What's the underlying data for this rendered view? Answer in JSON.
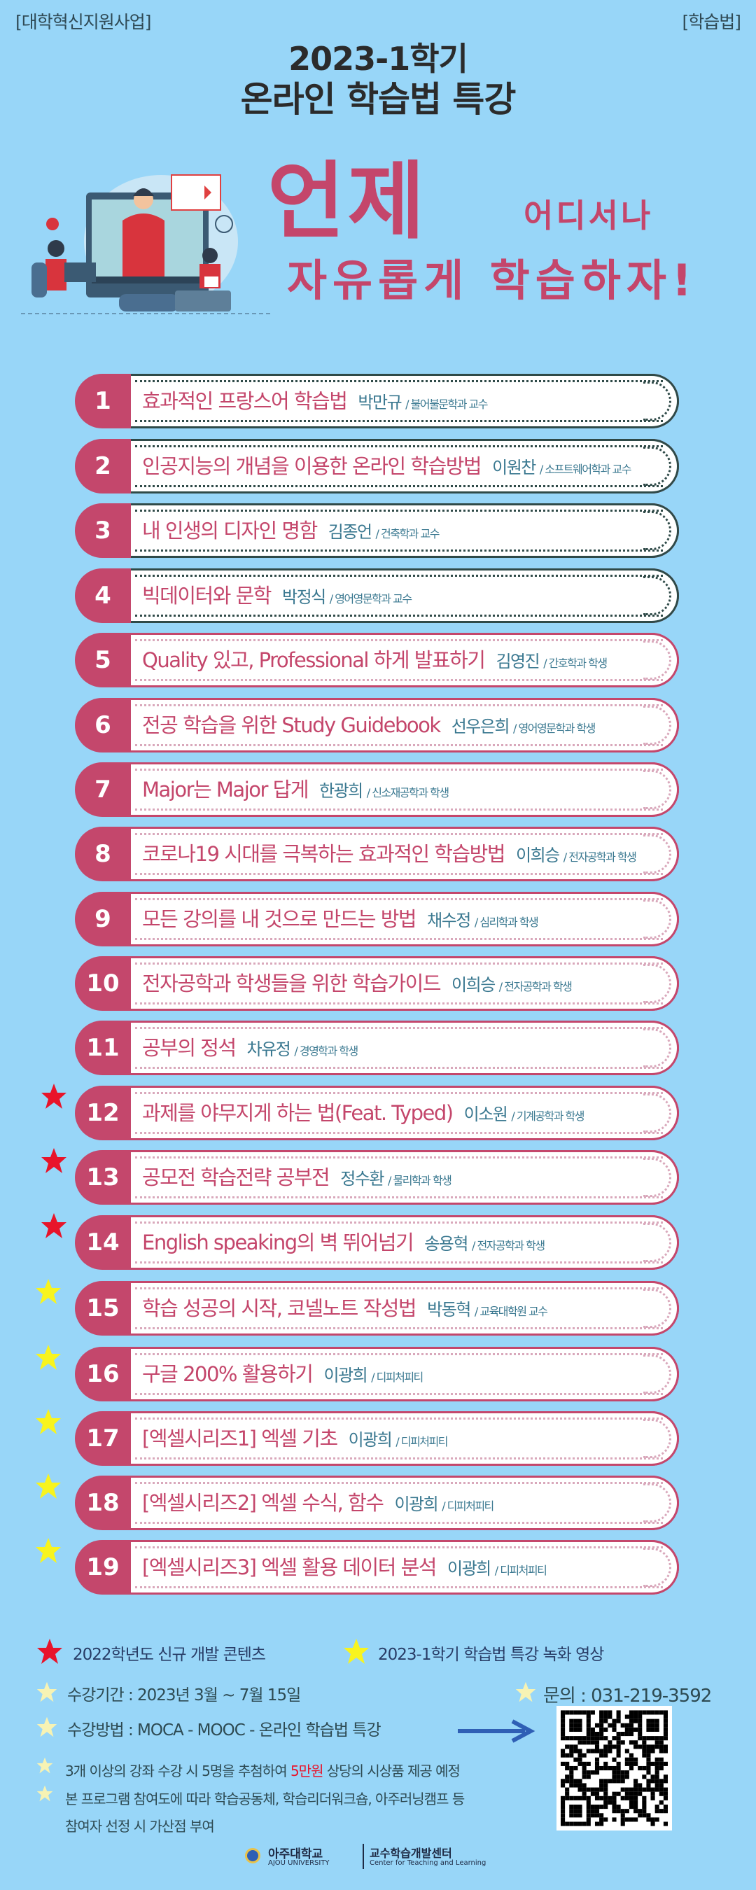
{
  "header": {
    "left_tag": "[대학혁신지원사업]",
    "right_tag": "[학습법]",
    "title_line1": "2023-1학기",
    "title_line2": "온라인 학습법 특강"
  },
  "slogan": {
    "word1": "언제",
    "word2": "어디서나",
    "line2": "자유롭게 학습하자!"
  },
  "colors": {
    "background": "#98d6f8",
    "accent_pink": "#c4476c",
    "name_teal": "#3a7890",
    "red_star": "#e8142a",
    "yellow_star": "#f8f41e"
  },
  "lectures": [
    {
      "num": "1",
      "title": "효과적인 프랑스어 학습법",
      "name": "박만규",
      "dept": "/ 불어불문학과 교수",
      "star": ""
    },
    {
      "num": "2",
      "title": "인공지능의 개념을 이용한 온라인 학습방법",
      "name": "이원찬",
      "dept": "/ 소프트웨어학과 교수",
      "star": ""
    },
    {
      "num": "3",
      "title": "내 인생의 디자인 명함",
      "name": "김종언",
      "dept": "/ 건축학과 교수",
      "star": ""
    },
    {
      "num": "4",
      "title": "빅데이터와 문학",
      "name": "박정식",
      "dept": "/ 영어영문학과 교수",
      "star": ""
    },
    {
      "num": "5",
      "title": "Quality 있고, Professional 하게 발표하기",
      "name": "김영진",
      "dept": "/ 간호학과 학생",
      "star": ""
    },
    {
      "num": "6",
      "title": "전공 학습을 위한 Study Guidebook",
      "name": "선우은희",
      "dept": "/ 영어영문학과 학생",
      "star": ""
    },
    {
      "num": "7",
      "title": "Major는 Major 답게",
      "name": "한광희",
      "dept": "/ 신소재공학과 학생",
      "star": ""
    },
    {
      "num": "8",
      "title": "코로나19 시대를 극복하는 효과적인 학습방법",
      "name": "이희승",
      "dept": "/ 전자공학과 학생",
      "star": ""
    },
    {
      "num": "9",
      "title": "모든 강의를 내 것으로 만드는 방법",
      "name": "채수정",
      "dept": "/ 심리학과 학생",
      "star": ""
    },
    {
      "num": "10",
      "title": "전자공학과 학생들을 위한 학습가이드",
      "name": "이희승",
      "dept": "/ 전자공학과 학생",
      "star": ""
    },
    {
      "num": "11",
      "title": "공부의 정석",
      "name": "차유정",
      "dept": "/ 경영학과 학생",
      "star": ""
    },
    {
      "num": "12",
      "title": "과제를 야무지게 하는 법(Feat. Typed)",
      "name": "이소원",
      "dept": "/ 기계공학과 학생",
      "star": "red"
    },
    {
      "num": "13",
      "title": "공모전 학습전략 공부전",
      "name": "정수환",
      "dept": "/ 물리학과 학생",
      "star": "red"
    },
    {
      "num": "14",
      "title": "English speaking의 벽 뛰어넘기",
      "name": "송용혁",
      "dept": "/ 전자공학과 학생",
      "star": "red"
    },
    {
      "num": "15",
      "title": "학습 성공의 시작, 코넬노트 작성법",
      "name": "박동혁",
      "dept": "/ 교육대학원 교수",
      "star": "yellow"
    },
    {
      "num": "16",
      "title": "구글 200% 활용하기",
      "name": "이광희",
      "dept": "/ 디피처피티",
      "star": "yellow"
    },
    {
      "num": "17",
      "title": "[엑셀시리즈1] 엑셀 기초",
      "name": "이광희",
      "dept": "/ 디피처피티",
      "star": "yellow"
    },
    {
      "num": "18",
      "title": "[엑셀시리즈2] 엑셀 수식, 함수",
      "name": "이광희",
      "dept": "/ 디피처피티",
      "star": "yellow"
    },
    {
      "num": "19",
      "title": "[엑셀시리즈3] 엑셀 활용 데이터 분석",
      "name": "이광희",
      "dept": "/ 디피처피티",
      "star": "yellow"
    }
  ],
  "legend": {
    "red": "2022학년도  신규 개발 콘텐츠",
    "yellow": "2023-1학기  학습법 특강 녹화 영상"
  },
  "info": {
    "period": "수강기간 : 2023년 3월  ~ 7월 15일",
    "contact": "문의 : 031-219-3592",
    "method": "수강방법 : MOCA - MOOC - 온라인 학습법 특강",
    "note1_pre": "3개 이상의 강좌 수강 시 5명을 추첨하여 ",
    "note1_hl": "5만원",
    "note1_post": " 상당의 시상품 제공 예정",
    "note2": "본 프로그램 참여도에 따라 학습공동체, 학습리더워크숍, 아주러닝캠프 등",
    "note3": "참여자 선정 시 가산점 부여"
  },
  "footer": {
    "univ_kr": "아주대학교",
    "univ_en": "AJOU UNIVERSITY",
    "center_kr": "교수학습개발센터",
    "center_en": "Center for Teaching and Learning"
  }
}
